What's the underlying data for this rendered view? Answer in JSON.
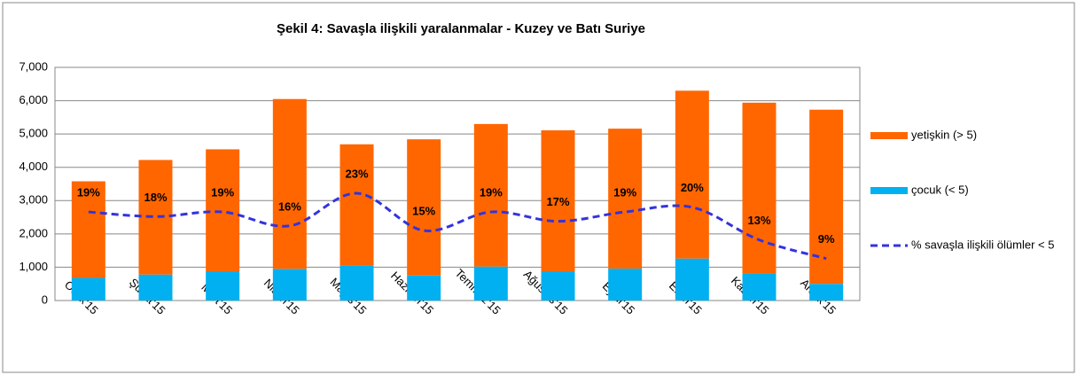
{
  "chart_data": {
    "type": "stacked-bar-line",
    "title": "Şekil 4: Savaşla ilişkili yaralanmalar  - Kuzey ve Batı Suriye",
    "categories": [
      "Ocak'15",
      "Şubat'15",
      "Mart'15",
      "Nisan'15",
      "Mayıs'15",
      "Haziran'15",
      "Temmuz'15",
      "Ağustos'15",
      "Eylül'15",
      "Ekim'15",
      "Kasım'15",
      "Aralık'15"
    ],
    "series": [
      {
        "name": "çocuk (< 5)",
        "color": "#00b0f0",
        "values": [
          680,
          780,
          880,
          950,
          1060,
          750,
          1020,
          880,
          960,
          1260,
          800,
          500
        ]
      },
      {
        "name": "yetişkin (> 5)",
        "color": "#ff6600",
        "values": [
          2900,
          3440,
          3660,
          5100,
          3630,
          4090,
          4280,
          4230,
          4200,
          5040,
          5140,
          5230
        ]
      },
      {
        "name": "% savaşla ilişkili ölümler < 5",
        "color": "#3333dd",
        "axis": "y2",
        "values": [
          19,
          18,
          19,
          16,
          23,
          15,
          19,
          17,
          19,
          20,
          13,
          9
        ],
        "value_labels": [
          "19%",
          "18%",
          "19%",
          "16%",
          "23%",
          "15%",
          "19%",
          "17%",
          "19%",
          "20%",
          "13%",
          "9%"
        ]
      }
    ],
    "ylim": [
      0,
      7000
    ],
    "yticks": [
      0,
      {
        "value": 1000,
        "label": "1,000"
      },
      {
        "value": 2000,
        "label": "2,000"
      },
      {
        "value": 3000,
        "label": "3,000"
      },
      {
        "value": 4000,
        "label": "4,000"
      },
      {
        "value": 5000,
        "label": "5,000"
      },
      {
        "value": 6000,
        "label": "6,000"
      },
      {
        "value": 7000,
        "label": "7,000"
      }
    ],
    "y2lim": [
      0,
      50
    ],
    "grid": true
  }
}
